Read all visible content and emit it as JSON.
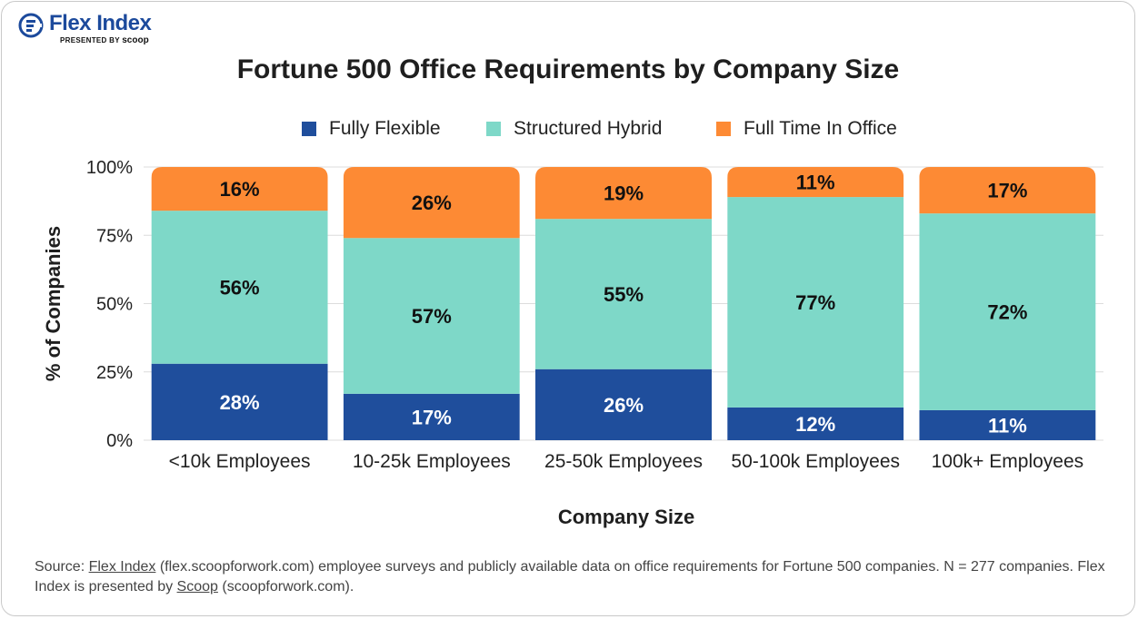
{
  "brand": {
    "name": "Flex Index",
    "presented_by": "PRESENTED BY",
    "partner": "scoop",
    "icon": "flex-index-logo-icon"
  },
  "source": {
    "prefix": "Source: ",
    "link1": "Flex Index",
    "middle": " (flex.scoopforwork.com) employee surveys and publicly available data on office requirements for Fortune 500 companies. N = 277 companies. Flex Index is presented by ",
    "link2": "Scoop",
    "suffix": " (scoopforwork.com)."
  },
  "chart_data": {
    "type": "bar",
    "stacked": true,
    "title": "Fortune 500 Office Requirements by Company Size",
    "xlabel": "Company Size",
    "ylabel": "% of Companies",
    "ylim": [
      0,
      100
    ],
    "yticks": [
      "0%",
      "25%",
      "50%",
      "75%",
      "100%"
    ],
    "grid": true,
    "legend_position": "top",
    "categories": [
      "<10k Employees",
      "10-25k Employees",
      "25-50k Employees",
      "50-100k Employees",
      "100k+ Employees"
    ],
    "series": [
      {
        "name": "Fully Flexible",
        "color": "#1f4e9c",
        "values": [
          28,
          17,
          26,
          12,
          11
        ]
      },
      {
        "name": "Structured Hybrid",
        "color": "#7ed8c8",
        "values": [
          56,
          57,
          55,
          77,
          72
        ]
      },
      {
        "name": "Full Time In Office",
        "color": "#fd8a34",
        "values": [
          16,
          26,
          19,
          11,
          17
        ]
      }
    ],
    "value_labels": [
      [
        "28%",
        "17%",
        "26%",
        "12%",
        "11%"
      ],
      [
        "56%",
        "57%",
        "55%",
        "77%",
        "72%"
      ],
      [
        "16%",
        "26%",
        "19%",
        "11%",
        "17%"
      ]
    ]
  }
}
